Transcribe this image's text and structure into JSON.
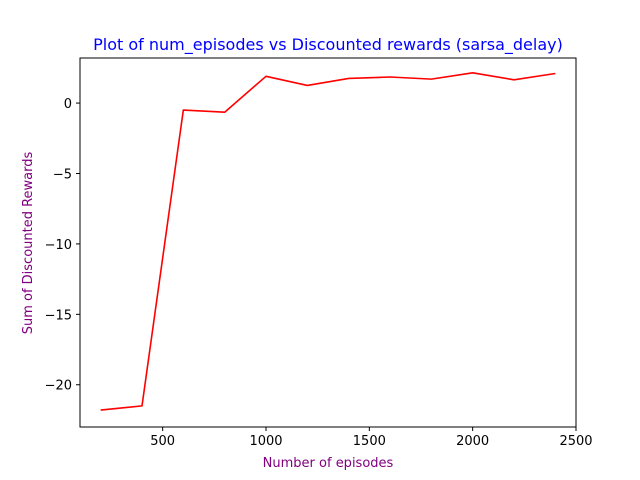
{
  "chart_data": {
    "type": "line",
    "title": "Plot of num_episodes vs Discounted rewards (sarsa_delay)",
    "xlabel": "Number of episodes",
    "ylabel": "Sum of Discounted Rewards",
    "xlim": [
      100,
      2500
    ],
    "ylim": [
      -23.0,
      3.2
    ],
    "xticks": [
      500,
      1000,
      1500,
      2000,
      2500
    ],
    "xtick_labels": [
      "500",
      "1000",
      "1500",
      "2000",
      "2500"
    ],
    "yticks": [
      0,
      -5,
      -10,
      -15,
      -20
    ],
    "ytick_labels": [
      "0",
      "−5",
      "−10",
      "−15",
      "−20"
    ],
    "grid": false,
    "series": [
      {
        "color": "#ff0000",
        "x": [
          200,
          400,
          600,
          800,
          1000,
          1200,
          1400,
          1600,
          1800,
          2000,
          2200,
          2400
        ],
        "y": [
          -21.8,
          -21.5,
          -0.5,
          -0.65,
          1.9,
          1.25,
          1.75,
          1.85,
          1.7,
          2.15,
          1.65,
          2.1
        ]
      }
    ],
    "colors": {
      "title": "#0000ff",
      "axis_label": "#800080",
      "line": "#ff0000"
    }
  }
}
